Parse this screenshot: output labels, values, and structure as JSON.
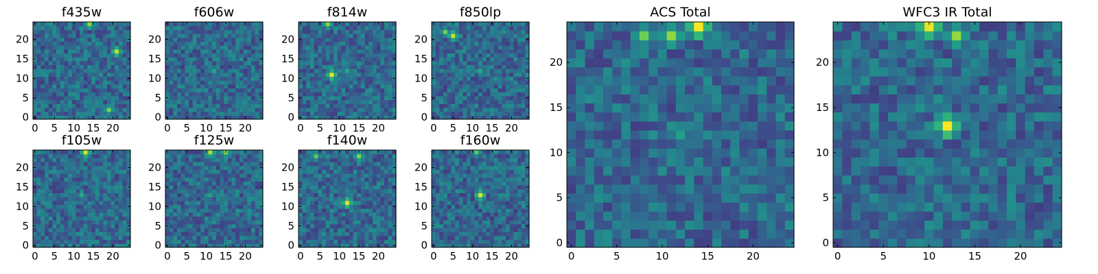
{
  "chart_data": [
    {
      "type": "heatmap",
      "title": "f435w",
      "grid_size": [
        25,
        25
      ],
      "xlim": [
        0,
        24
      ],
      "ylim": [
        0,
        24
      ],
      "xticks": [
        0,
        5,
        10,
        15,
        20
      ],
      "yticks": [
        0,
        5,
        10,
        15,
        20
      ],
      "colormap": "viridis",
      "grid": false,
      "hotspots": [
        {
          "x": 14,
          "y": 24,
          "intensity": 0.8
        },
        {
          "x": 21,
          "y": 17,
          "intensity": 0.9
        },
        {
          "x": 19,
          "y": 2,
          "intensity": 0.75
        }
      ]
    },
    {
      "type": "heatmap",
      "title": "f606w",
      "grid_size": [
        25,
        25
      ],
      "xlim": [
        0,
        24
      ],
      "ylim": [
        0,
        24
      ],
      "xticks": [
        0,
        5,
        10,
        15,
        20
      ],
      "yticks": [
        0,
        5,
        10,
        15,
        20
      ],
      "colormap": "viridis",
      "grid": false,
      "hotspots": [
        {
          "x": 12,
          "y": 12,
          "intensity": 0.55
        }
      ]
    },
    {
      "type": "heatmap",
      "title": "f814w",
      "grid_size": [
        25,
        25
      ],
      "xlim": [
        0,
        24
      ],
      "ylim": [
        0,
        24
      ],
      "xticks": [
        0,
        5,
        10,
        15,
        20
      ],
      "yticks": [
        0,
        5,
        10,
        15,
        20
      ],
      "colormap": "viridis",
      "grid": false,
      "hotspots": [
        {
          "x": 8,
          "y": 11,
          "intensity": 0.95
        },
        {
          "x": 7,
          "y": 24,
          "intensity": 0.8
        },
        {
          "x": 12,
          "y": 12,
          "intensity": 0.6
        }
      ]
    },
    {
      "type": "heatmap",
      "title": "f850lp",
      "grid_size": [
        25,
        25
      ],
      "xlim": [
        0,
        24
      ],
      "ylim": [
        0,
        24
      ],
      "xticks": [
        0,
        5,
        10,
        15,
        20
      ],
      "yticks": [
        0,
        5,
        10,
        15,
        20
      ],
      "colormap": "viridis",
      "grid": false,
      "hotspots": [
        {
          "x": 5,
          "y": 21,
          "intensity": 0.9
        },
        {
          "x": 3,
          "y": 22,
          "intensity": 0.75
        },
        {
          "x": 12,
          "y": 12,
          "intensity": 0.55
        }
      ]
    },
    {
      "type": "heatmap",
      "title": "f105w",
      "grid_size": [
        25,
        25
      ],
      "xlim": [
        0,
        24
      ],
      "ylim": [
        0,
        24
      ],
      "xticks": [
        0,
        5,
        10,
        15,
        20
      ],
      "yticks": [
        0,
        5,
        10,
        15,
        20
      ],
      "colormap": "viridis",
      "grid": false,
      "hotspots": [
        {
          "x": 13,
          "y": 24,
          "intensity": 0.9
        },
        {
          "x": 12,
          "y": 13,
          "intensity": 0.55
        }
      ]
    },
    {
      "type": "heatmap",
      "title": "f125w",
      "grid_size": [
        25,
        25
      ],
      "xlim": [
        0,
        24
      ],
      "ylim": [
        0,
        24
      ],
      "xticks": [
        0,
        5,
        10,
        15,
        20
      ],
      "yticks": [
        0,
        5,
        10,
        15,
        20
      ],
      "colormap": "viridis",
      "grid": false,
      "hotspots": [
        {
          "x": 11,
          "y": 24,
          "intensity": 0.85
        },
        {
          "x": 15,
          "y": 24,
          "intensity": 0.8
        },
        {
          "x": 11,
          "y": 13,
          "intensity": 0.55
        }
      ]
    },
    {
      "type": "heatmap",
      "title": "f140w",
      "grid_size": [
        25,
        25
      ],
      "xlim": [
        0,
        24
      ],
      "ylim": [
        0,
        24
      ],
      "xticks": [
        0,
        5,
        10,
        15,
        20
      ],
      "yticks": [
        0,
        5,
        10,
        15,
        20
      ],
      "colormap": "viridis",
      "grid": false,
      "hotspots": [
        {
          "x": 12,
          "y": 11,
          "intensity": 0.95
        },
        {
          "x": 15,
          "y": 23,
          "intensity": 0.8
        },
        {
          "x": 4,
          "y": 23,
          "intensity": 0.7
        }
      ]
    },
    {
      "type": "heatmap",
      "title": "f160w",
      "grid_size": [
        25,
        25
      ],
      "xlim": [
        0,
        24
      ],
      "ylim": [
        0,
        24
      ],
      "xticks": [
        0,
        5,
        10,
        15,
        20
      ],
      "yticks": [
        0,
        5,
        10,
        15,
        20
      ],
      "colormap": "viridis",
      "grid": false,
      "hotspots": [
        {
          "x": 12,
          "y": 13,
          "intensity": 0.95
        },
        {
          "x": 11,
          "y": 24,
          "intensity": 0.7
        }
      ]
    },
    {
      "type": "heatmap",
      "title": "ACS Total",
      "grid_size": [
        25,
        25
      ],
      "xlim": [
        0,
        24
      ],
      "ylim": [
        0,
        24
      ],
      "xticks": [
        0,
        5,
        10,
        15,
        20
      ],
      "yticks": [
        0,
        5,
        10,
        15,
        20
      ],
      "colormap": "viridis",
      "grid": false,
      "hotspots": [
        {
          "x": 14,
          "y": 24,
          "intensity": 1.0
        },
        {
          "x": 11,
          "y": 23,
          "intensity": 0.8
        },
        {
          "x": 8,
          "y": 23,
          "intensity": 0.75
        },
        {
          "x": 12,
          "y": 12,
          "intensity": 0.55
        }
      ]
    },
    {
      "type": "heatmap",
      "title": "WFC3 IR Total",
      "grid_size": [
        25,
        25
      ],
      "xlim": [
        0,
        24
      ],
      "ylim": [
        0,
        24
      ],
      "xticks": [
        0,
        5,
        10,
        15,
        20
      ],
      "yticks": [
        0,
        5,
        10,
        15,
        20
      ],
      "colormap": "viridis",
      "grid": false,
      "hotspots": [
        {
          "x": 12,
          "y": 13,
          "intensity": 1.0
        },
        {
          "x": 10,
          "y": 24,
          "intensity": 0.95
        },
        {
          "x": 13,
          "y": 23,
          "intensity": 0.8
        }
      ]
    }
  ]
}
